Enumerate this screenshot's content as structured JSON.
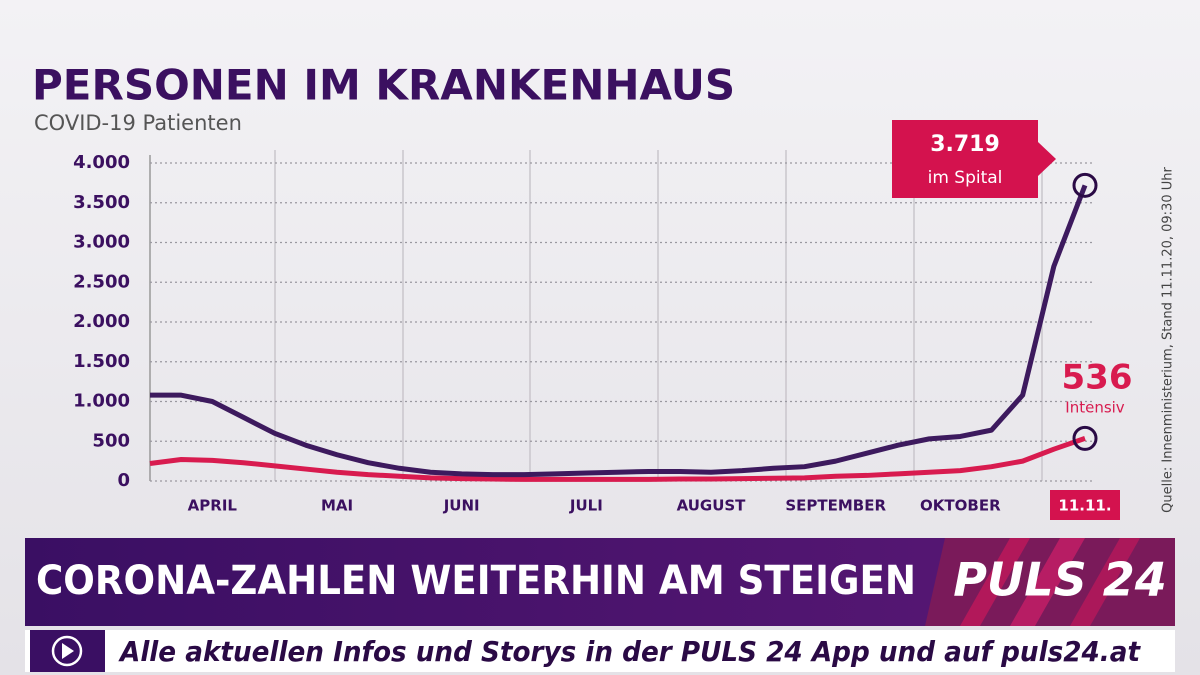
{
  "chart_data": {
    "type": "line",
    "title": "PERSONEN IM KRANKENHAUS",
    "subtitle": "COVID-19 Patienten",
    "source": "Quelle: Innenministerium, Stand 11.11.20, 09:30 Uhr",
    "categories": [
      null,
      null,
      "APRIL",
      null,
      null,
      null,
      "MAI",
      null,
      null,
      null,
      "JUNI",
      null,
      null,
      null,
      "JULI",
      null,
      null,
      null,
      "AUGUST",
      null,
      null,
      null,
      "SEPTEMBER",
      null,
      null,
      null,
      "OKTOBER",
      null,
      null,
      null,
      "11.11."
    ],
    "series": [
      {
        "name": "im Spital",
        "color": "#3d1a5e",
        "values": [
          1080,
          1080,
          1000,
          800,
          600,
          450,
          330,
          230,
          160,
          110,
          90,
          80,
          80,
          90,
          100,
          110,
          120,
          120,
          110,
          130,
          160,
          180,
          250,
          350,
          450,
          530,
          560,
          640,
          1080,
          2700,
          3719
        ],
        "value_labels": [
          null,
          null,
          null,
          null,
          null,
          null,
          null,
          null,
          null,
          null,
          null,
          null,
          null,
          null,
          null,
          null,
          null,
          null,
          null,
          null,
          null,
          null,
          null,
          null,
          null,
          null,
          null,
          null,
          null,
          null,
          "3.719"
        ]
      },
      {
        "name": "Intensiv",
        "color": "#d81b4f",
        "values": [
          220,
          270,
          260,
          230,
          190,
          150,
          110,
          80,
          60,
          40,
          30,
          25,
          20,
          20,
          20,
          20,
          20,
          25,
          25,
          30,
          35,
          40,
          60,
          70,
          90,
          110,
          130,
          180,
          250,
          400,
          536
        ]
      }
    ],
    "ylim": [
      0,
      4000
    ],
    "yticks": [
      0,
      500,
      {
        "value": 1000,
        "label": "1.000"
      },
      {
        "value": 1500,
        "label": "1.500"
      },
      {
        "value": 2000,
        "label": "2.000"
      },
      {
        "value": 2500,
        "label": "2.500"
      },
      {
        "value": 3000,
        "label": "3.000"
      },
      {
        "value": 3500,
        "label": "3.500"
      },
      {
        "value": 4000,
        "label": "4.000"
      }
    ],
    "grid": true
  },
  "banner": {
    "headline": "CORONA-ZAHLEN WEITERHIN AM STEIGEN",
    "logo": "PULS 24",
    "ticker": "Alle aktuellen Infos und Storys in der PULS 24 App und auf puls24.at"
  }
}
